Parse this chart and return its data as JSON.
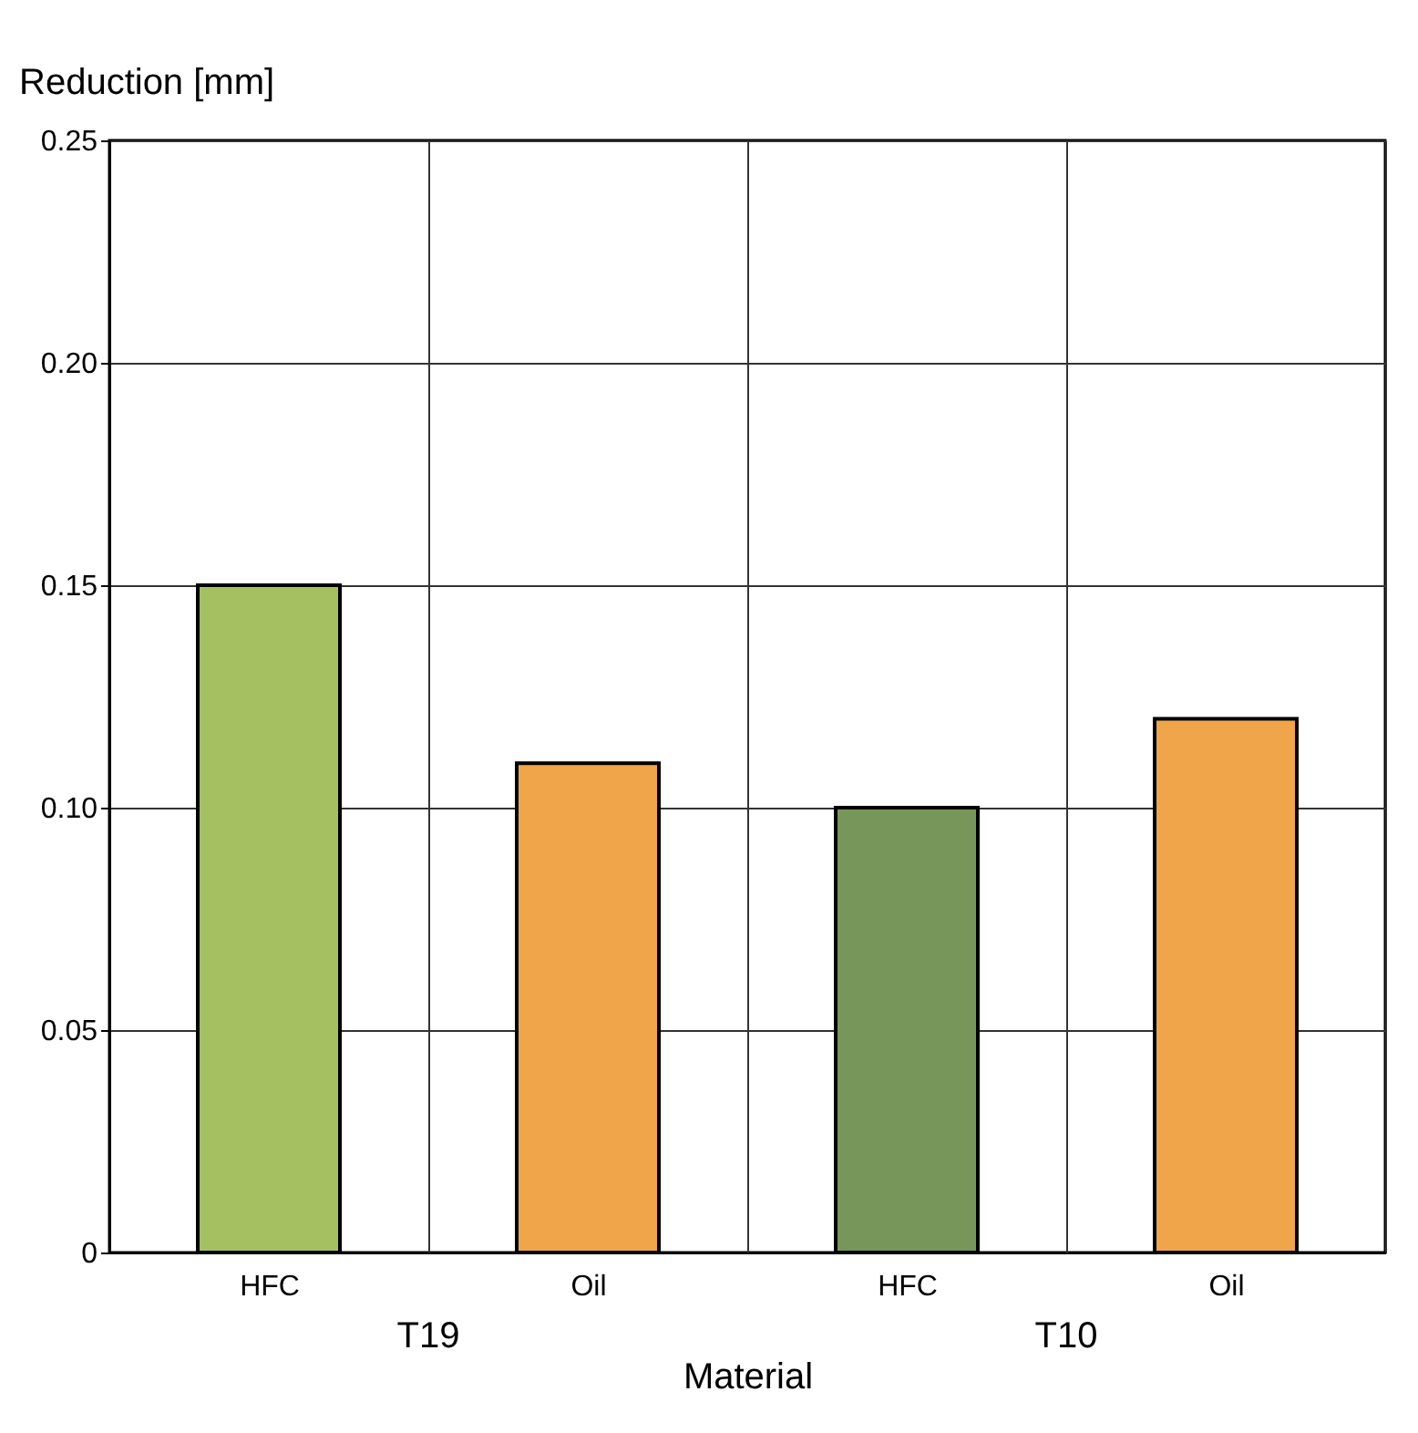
{
  "chart_data": {
    "type": "bar",
    "categories": [
      "HFC",
      "Oil",
      "HFC",
      "Oil"
    ],
    "values": [
      0.15,
      0.11,
      0.1,
      0.12
    ],
    "colors": [
      "#a5c061",
      "#f0a54a",
      "#77965a",
      "#f0a54a"
    ],
    "ylabel": "Reduction [mm]",
    "xlabel": "Material",
    "annotations": [
      "T19",
      "T10"
    ],
    "ylim": [
      0,
      0.25
    ],
    "yticks": [
      {
        "value": 0,
        "label": "0"
      },
      0.05,
      {
        "value": 0.1,
        "label": "0.10"
      },
      0.15,
      {
        "value": 0.2,
        "label": "0.20"
      },
      0.25
    ],
    "grid": true
  }
}
